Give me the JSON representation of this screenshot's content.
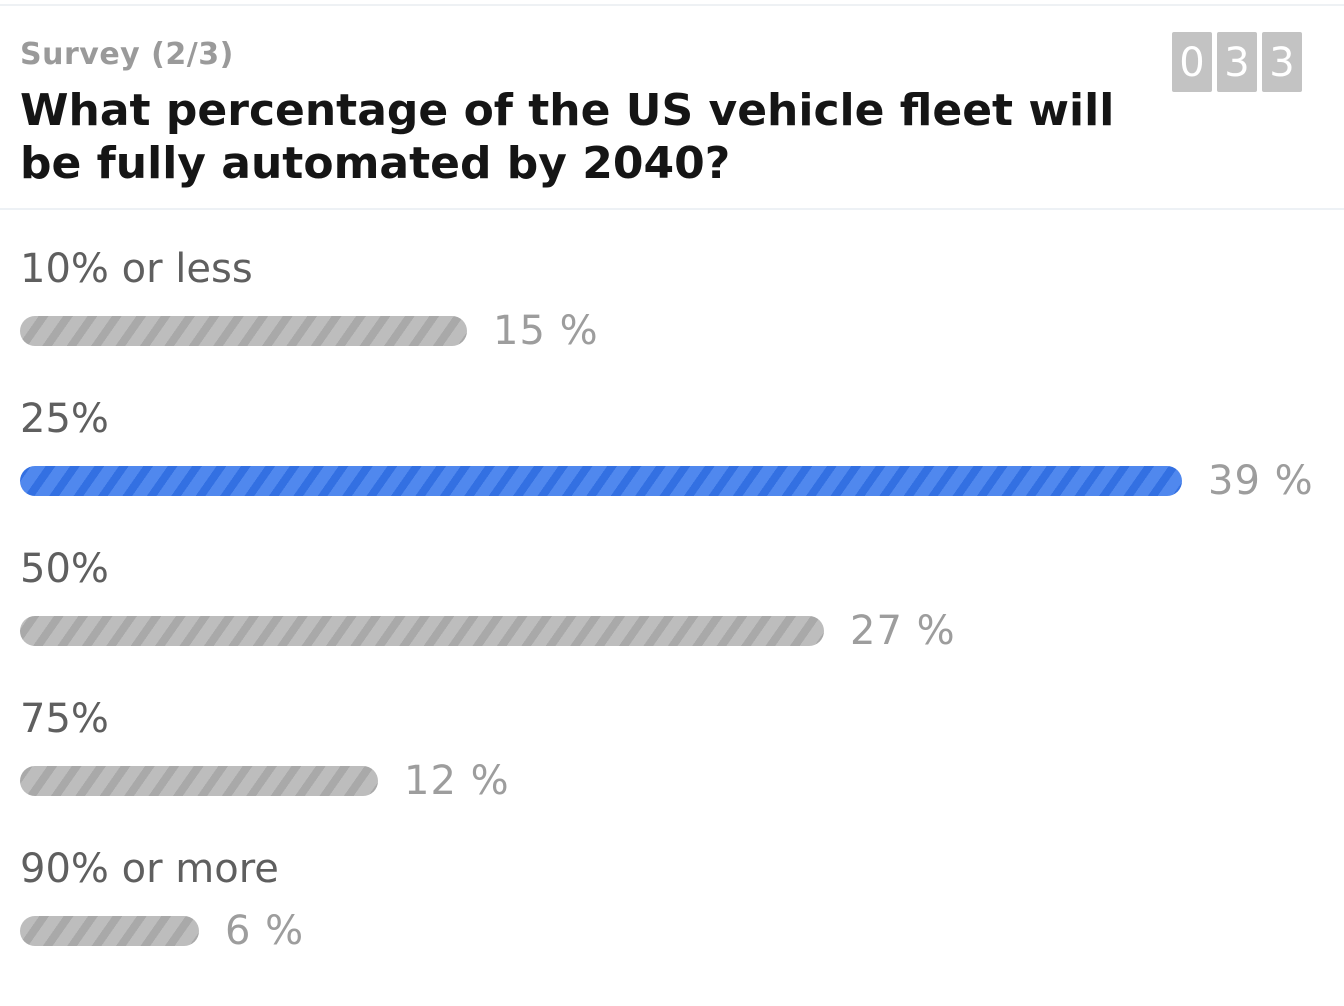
{
  "survey": {
    "progress_label": "Survey (2/3)",
    "question": "What percentage of the US vehicle fleet will be fully automated by 2040?",
    "counter_digits": [
      "0",
      "3",
      "3"
    ],
    "colors": {
      "selected_bar": "#3b78e7",
      "default_bar": "#b8b8b8"
    },
    "max_percent": 39,
    "options": [
      {
        "label": "10% or less",
        "percent": 15,
        "percent_text": "15 %",
        "selected": false
      },
      {
        "label": "25%",
        "percent": 39,
        "percent_text": "39 %",
        "selected": true
      },
      {
        "label": "50%",
        "percent": 27,
        "percent_text": "27 %",
        "selected": false
      },
      {
        "label": "75%",
        "percent": 12,
        "percent_text": "12 %",
        "selected": false
      },
      {
        "label": "90% or more",
        "percent": 6,
        "percent_text": "6 %",
        "selected": false
      }
    ]
  }
}
